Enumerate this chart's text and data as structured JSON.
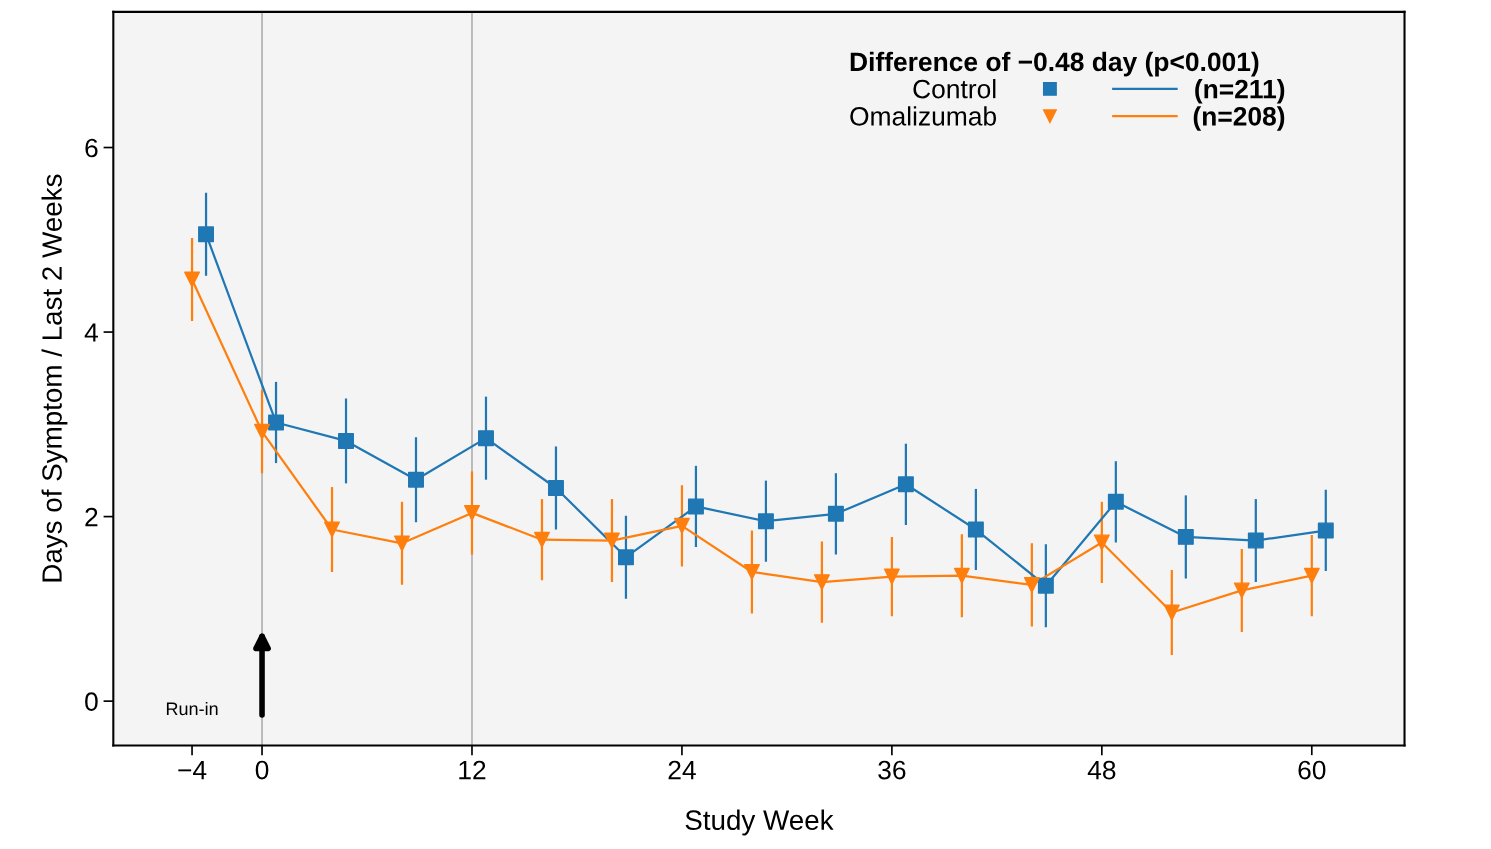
{
  "chart_data": {
    "type": "line",
    "xlabel": "Study Week",
    "ylabel": "Days of Symptom / Last 2 Weeks",
    "legend_title": "Difference of −0.48 day (p<0.001)",
    "xlim": [
      -8.5,
      65.3
    ],
    "ylim": [
      -0.48,
      7.47
    ],
    "xticks": [
      {
        "value": -4,
        "label": "−4"
      },
      0,
      12,
      24,
      36,
      48,
      60
    ],
    "yticks": [
      0,
      2,
      4,
      6
    ],
    "grid": false,
    "legend": "top right",
    "line_style": "solid",
    "series": [
      {
        "name": "Control",
        "color": "#1f77b4",
        "marker": "square",
        "x": [
          -3.2,
          0.8,
          4.8,
          8.8,
          12.8,
          16.8,
          20.8,
          24.8,
          28.8,
          32.8,
          36.8,
          40.8,
          44.8,
          48.8,
          52.8,
          56.8,
          60.8
        ],
        "values": [
          5.06,
          3.02,
          2.82,
          2.4,
          2.85,
          2.31,
          1.56,
          2.11,
          1.95,
          2.03,
          2.35,
          1.86,
          1.25,
          2.16,
          1.78,
          1.74,
          1.85
        ],
        "errors": [
          0.45,
          0.44,
          0.46,
          0.46,
          0.45,
          0.45,
          0.45,
          0.44,
          0.44,
          0.44,
          0.44,
          0.44,
          0.45,
          0.44,
          0.45,
          0.45,
          0.44
        ]
      },
      {
        "name": "Omalizumab",
        "color": "#ff7f0e",
        "marker": "triangle",
        "x": [
          -4,
          0,
          4,
          8,
          12,
          16,
          20,
          24,
          28,
          32,
          36,
          40,
          44,
          48,
          52,
          56,
          60
        ],
        "values": [
          4.57,
          2.92,
          1.86,
          1.71,
          2.04,
          1.75,
          1.74,
          1.9,
          1.4,
          1.29,
          1.35,
          1.36,
          1.26,
          1.72,
          0.96,
          1.2,
          1.36
        ],
        "errors": [
          0.45,
          0.45,
          0.46,
          0.45,
          0.45,
          0.44,
          0.45,
          0.44,
          0.45,
          0.44,
          0.43,
          0.45,
          0.45,
          0.44,
          0.46,
          0.45,
          0.44
        ]
      }
    ],
    "ref_lines": [
      {
        "axis": "x",
        "value": 0,
        "color": "#b0b0b0"
      },
      {
        "axis": "x",
        "value": 12,
        "color": "#b0b0b0"
      }
    ],
    "annotations": [
      "Run-in",
      "(n=211)",
      "(n=208)"
    ]
  }
}
